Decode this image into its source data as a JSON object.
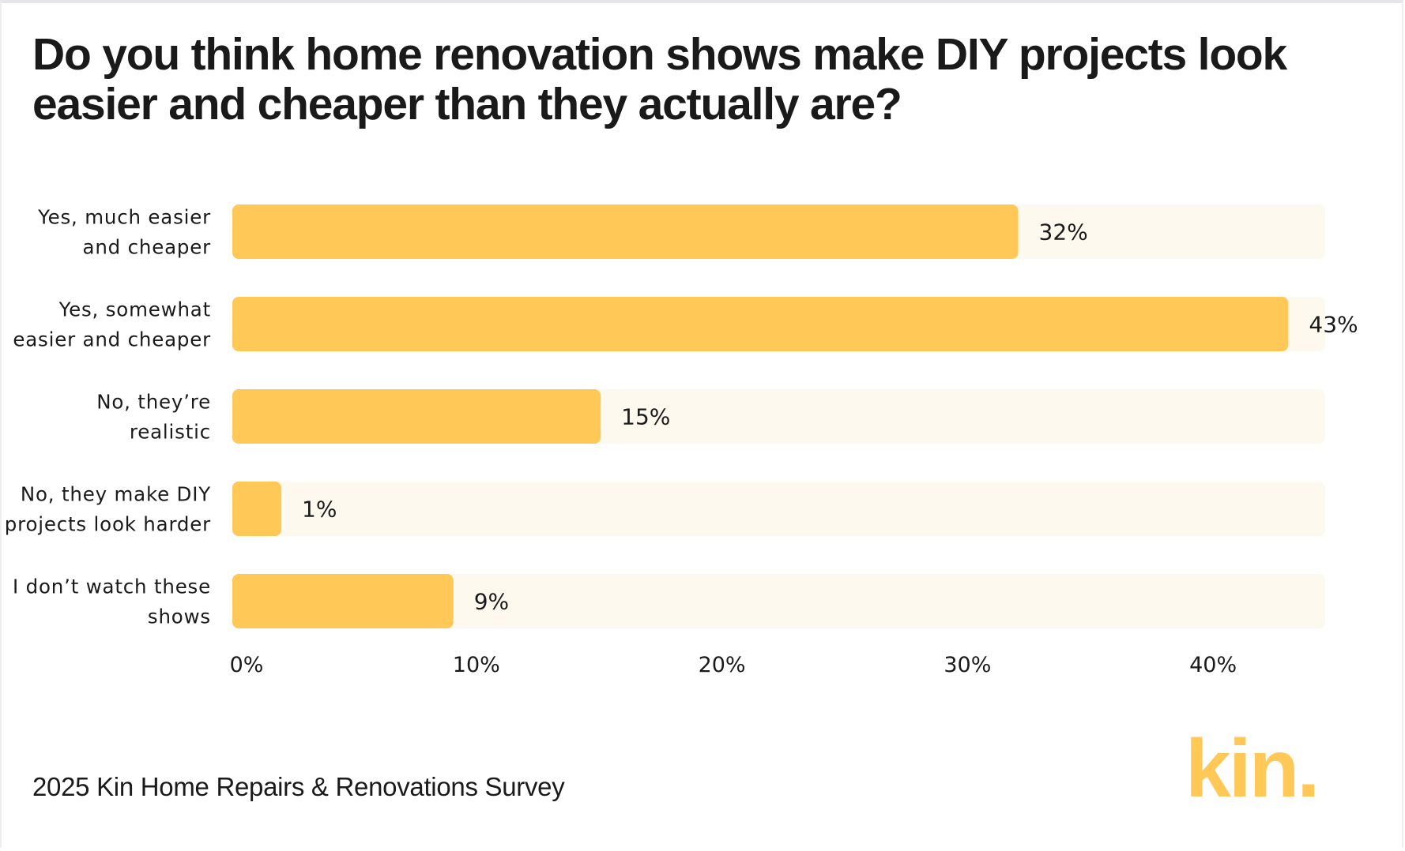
{
  "colors": {
    "bar": "#ffc857",
    "track": "#fdf9ef",
    "text": "#1a1a1a",
    "logo": "#ffc857"
  },
  "footer": {
    "source": "2025 Kin Home Repairs & Renovations Survey"
  },
  "logo": {
    "text": "kin."
  },
  "chart_data": {
    "type": "bar",
    "orientation": "horizontal",
    "title": "Do you think home renovation shows make DIY projects look easier and cheaper than they actually are?",
    "categories": [
      "Yes, much easier and cheaper",
      "Yes, somewhat easier and cheaper",
      "No, they’re realistic",
      "No, they make DIY projects look harder",
      "I don’t watch these shows"
    ],
    "category_lines": [
      [
        "Yes, much easier",
        "and cheaper"
      ],
      [
        "Yes, somewhat",
        "easier and cheaper"
      ],
      [
        "No, they’re",
        "realistic"
      ],
      [
        "No, they make DIY",
        "projects look harder"
      ],
      [
        "I don’t watch these",
        "shows"
      ]
    ],
    "values": [
      32,
      43,
      15,
      1,
      9
    ],
    "value_labels": [
      "32%",
      "43%",
      "15%",
      "1%",
      "9%"
    ],
    "xticks": [
      0,
      10,
      20,
      30,
      40
    ],
    "xtick_labels": [
      "0%",
      "10%",
      "20%",
      "30%",
      "40%"
    ],
    "xlim": [
      0,
      44.5
    ],
    "xlabel": "",
    "ylabel": "",
    "grid": false,
    "legend": "none"
  }
}
